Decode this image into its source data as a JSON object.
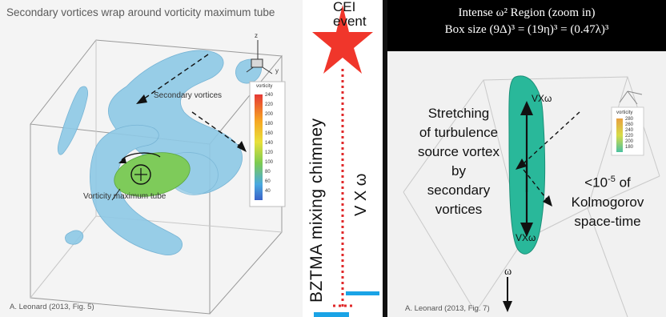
{
  "left_panel": {
    "title": "Secondary vortices wrap around vorticity maximum tube",
    "label_secondary": "Secondary vortices",
    "label_tube": "Vorticity maximum tube",
    "legend_title": "vorticity",
    "legend_ticks": [
      "240",
      "220",
      "200",
      "180",
      "160",
      "140",
      "120",
      "100",
      "80",
      "60",
      "40"
    ],
    "axis_z": "z",
    "axis_y": "y",
    "credit": "A. Leonard (2013, Fig. 5)"
  },
  "middle_panel": {
    "event_line1": "CEI",
    "event_line2": "event",
    "chimney_label": "BZTMA mixing chimney",
    "vx_label": "V X ω"
  },
  "right_panel": {
    "header_line1": "Intense ω² Region (zoom in)",
    "header_line2": "Box size (9Δ)³ = (19η)³ = (0.47λ)³",
    "stretch_text": [
      "Stretching",
      "of turbulence",
      "source vortex",
      "by",
      "secondary",
      "vortices"
    ],
    "kolmogorov_text": [
      "<10",
      "-5",
      " of",
      "Kolmogorov",
      "space-time"
    ],
    "vxw_top": "VXω",
    "vxw_bottom": "VXω",
    "omega": "ω",
    "legend_title": "vorticity",
    "legend_ticks": [
      "280",
      "260",
      "240",
      "220",
      "200",
      "180"
    ],
    "credit": "A. Leonard (2013, Fig. 7)"
  },
  "colors": {
    "isosurface": "#8ec9e6",
    "tube_green": "#7ecb5a",
    "event_red": "#f0362b",
    "dotted_red": "#e0282a",
    "accent_blue": "#1aa3e6",
    "header_black": "#000000",
    "right_tube": "#29b89a"
  }
}
